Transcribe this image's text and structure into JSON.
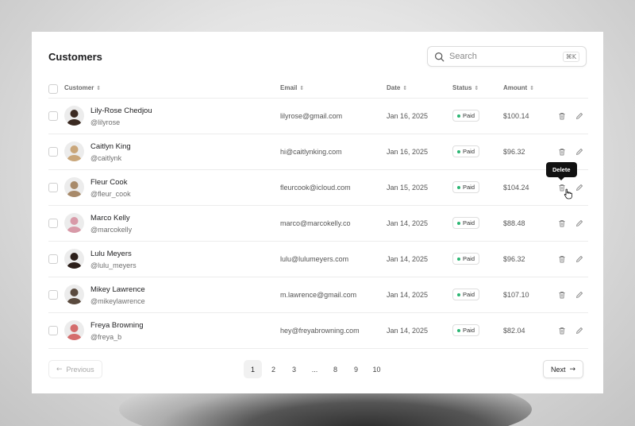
{
  "title": "Customers",
  "search": {
    "placeholder": "Search",
    "shortcut": "⌘K"
  },
  "columns": {
    "customer": "Customer",
    "email": "Email",
    "date": "Date",
    "status": "Status",
    "amount": "Amount"
  },
  "rows": [
    {
      "name": "Lily-Rose Chedjou",
      "handle": "@lilyrose",
      "email": "lilyrose@gmail.com",
      "date": "Jan 16, 2025",
      "status": "Paid",
      "amount": "$100.14",
      "avatar_color": "#3b2a22"
    },
    {
      "name": "Caitlyn King",
      "handle": "@caitlynk",
      "email": "hi@caitlynking.com",
      "date": "Jan 16, 2025",
      "status": "Paid",
      "amount": "$96.32",
      "avatar_color": "#c9a67a"
    },
    {
      "name": "Fleur Cook",
      "handle": "@fleur_cook",
      "email": "fleurcook@icloud.com",
      "date": "Jan 15, 2025",
      "status": "Paid",
      "amount": "$104.24",
      "avatar_color": "#a88a6a"
    },
    {
      "name": "Marco Kelly",
      "handle": "@marcokelly",
      "email": "marco@marcokelly.co",
      "date": "Jan 14, 2025",
      "status": "Paid",
      "amount": "$88.48",
      "avatar_color": "#d89aa8"
    },
    {
      "name": "Lulu Meyers",
      "handle": "@lulu_meyers",
      "email": "lulu@lulumeyers.com",
      "date": "Jan 14, 2025",
      "status": "Paid",
      "amount": "$96.32",
      "avatar_color": "#2c1f1a"
    },
    {
      "name": "Mikey Lawrence",
      "handle": "@mikeylawrence",
      "email": "m.lawrence@gmail.com",
      "date": "Jan 14, 2025",
      "status": "Paid",
      "amount": "$107.10",
      "avatar_color": "#5a4a3e"
    },
    {
      "name": "Freya Browning",
      "handle": "@freya_b",
      "email": "hey@freyabrowning.com",
      "date": "Jan 14, 2025",
      "status": "Paid",
      "amount": "$82.04",
      "avatar_color": "#d46d6d"
    }
  ],
  "tooltip": "Delete",
  "pagination": {
    "previous": "Previous",
    "next": "Next",
    "pages": [
      "1",
      "2",
      "3",
      "...",
      "8",
      "9",
      "10"
    ]
  },
  "colors": {
    "status_dot": "#2bb673",
    "tooltip_bg": "#111111"
  }
}
